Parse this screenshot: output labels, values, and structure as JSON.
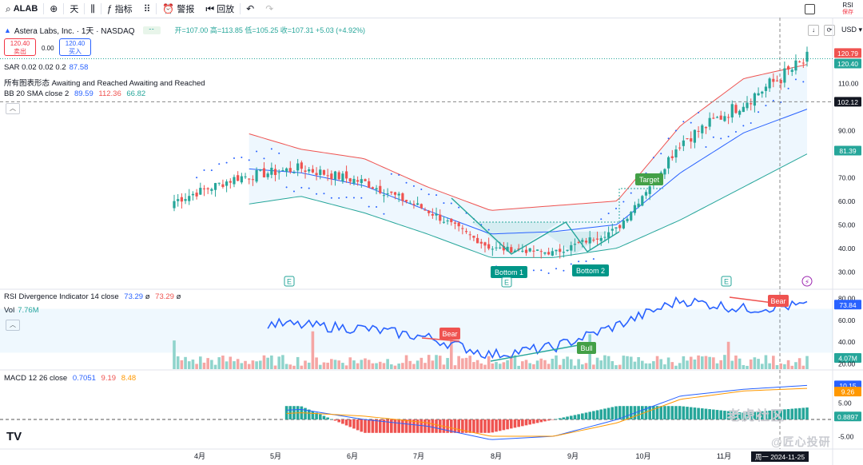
{
  "toolbar": {
    "symbol": "ALAB",
    "timeframe": "天",
    "indicators_label": "指标",
    "alert_label": "警报",
    "replay_label": "回放",
    "rsi_tag": "RSI",
    "rsi_sub": "保存"
  },
  "header": {
    "title": "Astera Labs, Inc. · 1天 · NASDAQ",
    "ohlc": "开=107.00 高=113.85 低=105.25 收=107.31 +5.03 (+4.92%)",
    "currency": "USD"
  },
  "trade": {
    "sell_price": "120.40",
    "sell_label": "卖出",
    "spread": "0.00",
    "buy_price": "120.40",
    "buy_label": "买入"
  },
  "legends": {
    "sar_name": "SAR 0.02 0.02 0.2",
    "sar_val": "87.58",
    "pattern": "所有图表形态 Awaiting and Reached Awaiting and Reached",
    "bb_name": "BB 20 SMA close 2",
    "bb_basis": "89.59",
    "bb_upper": "112.36",
    "bb_lower": "66.82",
    "rsi_name": "RSI Divergence Indicator 14 close",
    "rsi_val": "73.29",
    "rsi_x1": "ø",
    "rsi_val2": "73.29",
    "rsi_x2": "ø",
    "vol_name": "Vol",
    "vol_val": "7.76M",
    "macd_name": "MACD 12 26 close",
    "macd_v1": "0.7051",
    "macd_v2": "9.19",
    "macd_v3": "8.48"
  },
  "labels": {
    "target": "Target",
    "bottom1": "Bottom 1",
    "bottom2": "Bottom 2",
    "bear1": "Bear",
    "bear2": "Bear",
    "bull": "Bull",
    "earnings": "E"
  },
  "price_axis": [
    "120.79",
    "120.40",
    "110.00",
    "102.12",
    "90.00",
    "81.39",
    "70.00",
    "60.00",
    "50.00",
    "40.00",
    "30.00"
  ],
  "rsi_axis": [
    "80.00",
    "73.84",
    "60.00",
    "40.00",
    "4.07M",
    "20.00"
  ],
  "macd_axis": [
    "10.15",
    "9.26",
    "5.00",
    "0.8897",
    "-5.00"
  ],
  "x_axis": [
    "4月",
    "5月",
    "6月",
    "7月",
    "8月",
    "9月",
    "10月",
    "11月"
  ],
  "crosshair_date": "周一 2024-11-25",
  "watermark1": "老虎社区",
  "watermark2": "@匠心投研",
  "colors": {
    "up": "#26a69a",
    "down": "#ef5350",
    "bb_upper": "#ef5350",
    "bb_lower": "#26a69a",
    "bb_basis": "#2962ff",
    "rsi": "#2962ff",
    "macd": "#2962ff",
    "signal": "#ff9800"
  },
  "chart_data": {
    "type": "candlestick",
    "ylim": [
      30,
      125
    ],
    "rsi_ylim": [
      15,
      85
    ],
    "x": [
      "2024-03-20",
      "2024-04-01",
      "2024-05-01",
      "2024-06-03",
      "2024-07-01",
      "2024-08-01",
      "2024-09-03",
      "2024-10-01",
      "2024-11-01",
      "2024-11-25",
      "2024-11-29"
    ],
    "close": [
      60,
      70,
      74,
      68,
      56,
      40,
      38,
      48,
      85,
      102,
      120
    ],
    "bb_upper": [
      null,
      90,
      82,
      78,
      66,
      56,
      58,
      60,
      92,
      112,
      118
    ],
    "bb_lower": [
      null,
      58,
      62,
      55,
      46,
      36,
      36,
      40,
      52,
      66,
      80
    ],
    "rsi": [
      60,
      58,
      55,
      52,
      44,
      28,
      35,
      55,
      78,
      70,
      73.29
    ],
    "macd": [
      0,
      2,
      3,
      0,
      -2,
      -6,
      -5,
      0,
      7,
      9,
      10.15
    ],
    "signal": [
      0,
      1,
      2,
      1,
      -1,
      -5,
      -5,
      -1,
      6,
      8.5,
      9.26
    ]
  }
}
